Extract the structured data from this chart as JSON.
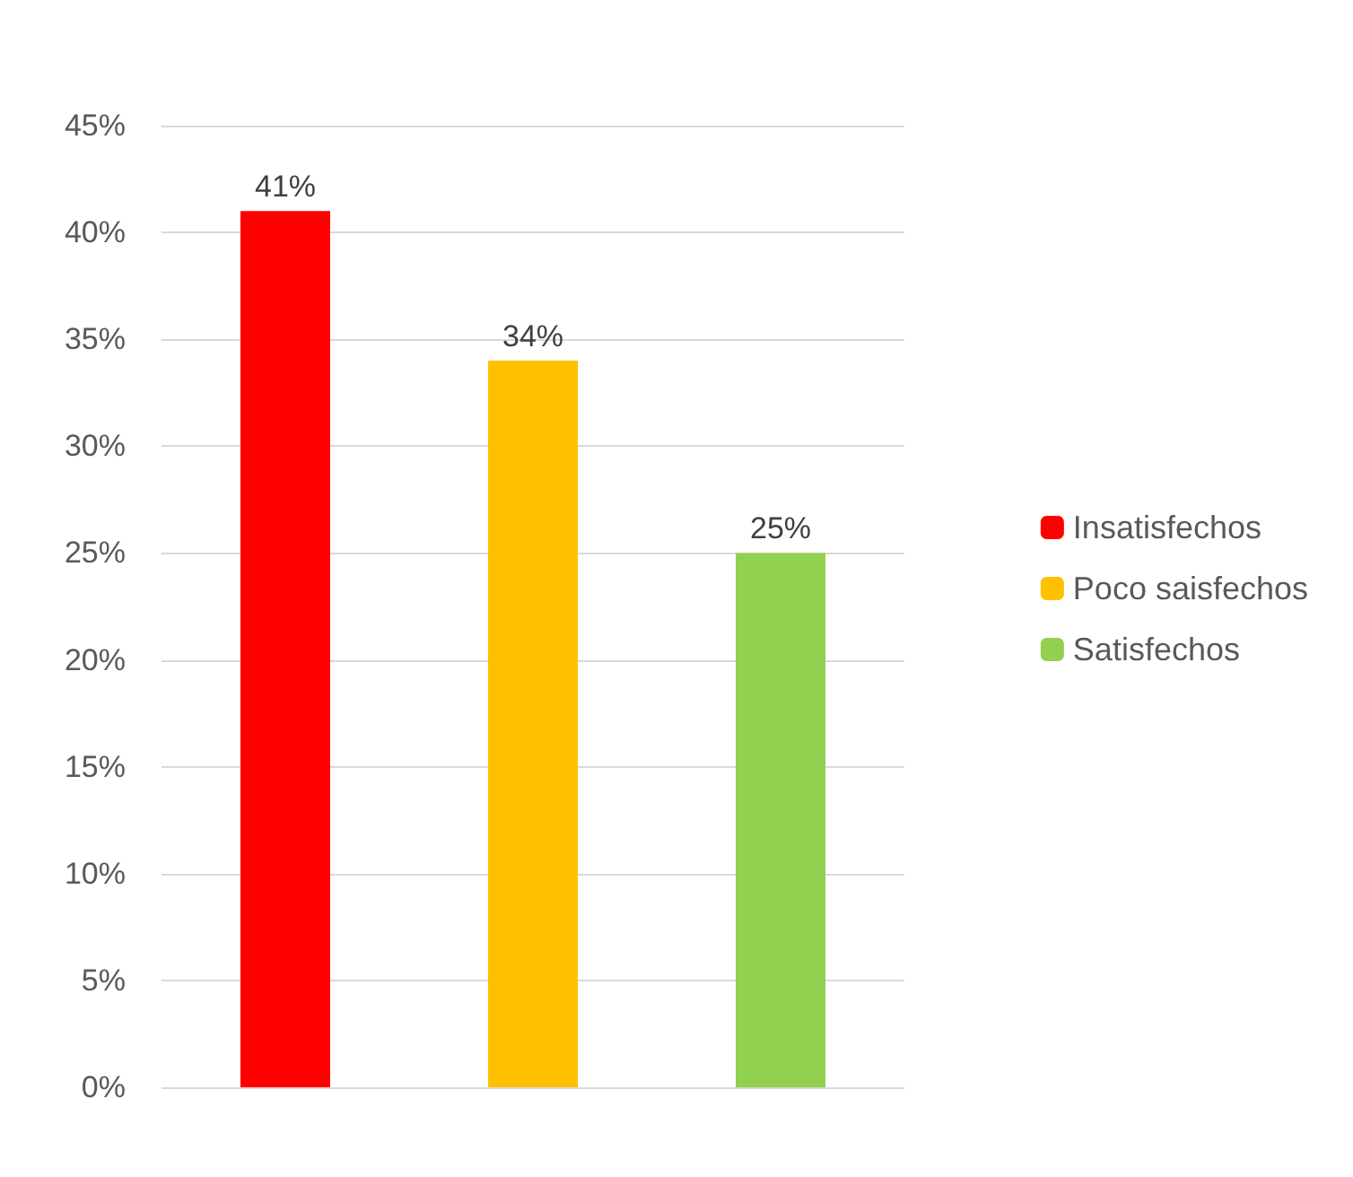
{
  "chart_data": {
    "type": "bar",
    "categories": [
      null,
      null,
      null
    ],
    "stacked": true,
    "series": [
      {
        "name": "Insatisfechos",
        "color": "#ff0000",
        "values": [
          41,
          null,
          null
        ],
        "value_labels": [
          "41%",
          null,
          null
        ]
      },
      {
        "name": "Poco saisfechos",
        "color": "#ffc000",
        "values": [
          null,
          34,
          null
        ],
        "value_labels": [
          null,
          "34%",
          null
        ]
      },
      {
        "name": "Satisfechos",
        "color": "#92d050",
        "values": [
          null,
          null,
          25
        ],
        "value_labels": [
          null,
          null,
          "25%"
        ]
      }
    ],
    "ylim": [
      0,
      45
    ],
    "yticks": [
      {
        "value": 0,
        "label": "0%"
      },
      {
        "value": 5,
        "label": "5%"
      },
      {
        "value": 10,
        "label": "10%"
      },
      {
        "value": 15,
        "label": "15%"
      },
      {
        "value": 20,
        "label": "20%"
      },
      {
        "value": 25,
        "label": "25%"
      },
      {
        "value": 30,
        "label": "30%"
      },
      {
        "value": 35,
        "label": "35%"
      },
      {
        "value": 40,
        "label": "40%"
      },
      {
        "value": 45,
        "label": "45%"
      }
    ],
    "grid": true,
    "legend": "right"
  }
}
